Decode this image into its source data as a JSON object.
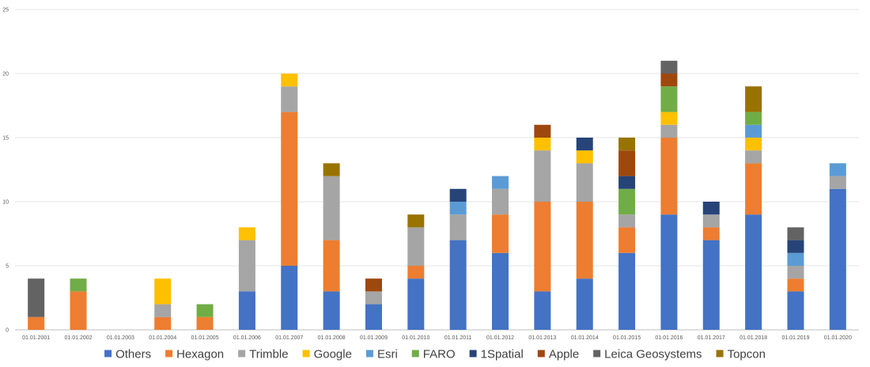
{
  "chart_data": {
    "type": "bar",
    "stacked": true,
    "title": "",
    "xlabel": "",
    "ylabel": "",
    "ylim": [
      0,
      25
    ],
    "yticks": [
      0,
      5,
      10,
      15,
      20,
      25
    ],
    "grid": true,
    "legend_position": "bottom",
    "categories": [
      "01.01.2001",
      "01.01.2002",
      "01.01.2003",
      "01.01.2004",
      "01.01.2005",
      "01.01.2006",
      "01.01.2007",
      "01.01.2008",
      "01.01.2009",
      "01.01.2010",
      "01.01.2011",
      "01.01.2012",
      "01.01.2013",
      "01.01.2014",
      "01.01.2015",
      "01.01.2016",
      "01.01.2017",
      "01.01.2018",
      "01.01.2019",
      "01.01.2020"
    ],
    "series": [
      {
        "name": "Others",
        "color": "#4472C4",
        "values": [
          0,
          0,
          0,
          0,
          0,
          3,
          5,
          3,
          2,
          4,
          7,
          6,
          3,
          4,
          6,
          9,
          7,
          9,
          3,
          11
        ]
      },
      {
        "name": "Hexagon",
        "color": "#ED7D31",
        "values": [
          1,
          3,
          0,
          1,
          1,
          0,
          12,
          4,
          0,
          1,
          0,
          3,
          7,
          6,
          2,
          6,
          1,
          4,
          1,
          0
        ]
      },
      {
        "name": "Trimble",
        "color": "#A5A5A5",
        "values": [
          0,
          0,
          0,
          1,
          0,
          4,
          2,
          5,
          1,
          3,
          2,
          2,
          4,
          3,
          1,
          1,
          1,
          1,
          1,
          1
        ]
      },
      {
        "name": "Google",
        "color": "#FFC000",
        "values": [
          0,
          0,
          0,
          2,
          0,
          1,
          1,
          0,
          0,
          0,
          0,
          0,
          1,
          1,
          0,
          1,
          0,
          1,
          0,
          0
        ]
      },
      {
        "name": "Esri",
        "color": "#5B9BD5",
        "values": [
          0,
          0,
          0,
          0,
          0,
          0,
          0,
          0,
          0,
          0,
          1,
          1,
          0,
          0,
          0,
          0,
          0,
          1,
          1,
          1
        ]
      },
      {
        "name": "FARO",
        "color": "#70AD47",
        "values": [
          0,
          1,
          0,
          0,
          1,
          0,
          0,
          0,
          0,
          0,
          0,
          0,
          0,
          0,
          2,
          2,
          0,
          1,
          0,
          0
        ]
      },
      {
        "name": "1Spatial",
        "color": "#264478",
        "values": [
          0,
          0,
          0,
          0,
          0,
          0,
          0,
          0,
          0,
          0,
          1,
          0,
          0,
          1,
          1,
          0,
          1,
          0,
          1,
          0
        ]
      },
      {
        "name": "Apple",
        "color": "#9E480E",
        "values": [
          0,
          0,
          0,
          0,
          0,
          0,
          0,
          0,
          1,
          0,
          0,
          0,
          1,
          0,
          2,
          1,
          0,
          0,
          0,
          0
        ]
      },
      {
        "name": "Leica Geosystems",
        "color": "#636363",
        "values": [
          3,
          0,
          0,
          0,
          0,
          0,
          0,
          0,
          0,
          0,
          0,
          0,
          0,
          0,
          0,
          1,
          0,
          0,
          1,
          0
        ]
      },
      {
        "name": "Topcon",
        "color": "#997300",
        "values": [
          0,
          0,
          0,
          0,
          0,
          0,
          0,
          1,
          0,
          1,
          0,
          0,
          0,
          0,
          1,
          0,
          0,
          2,
          0,
          0
        ]
      }
    ]
  }
}
